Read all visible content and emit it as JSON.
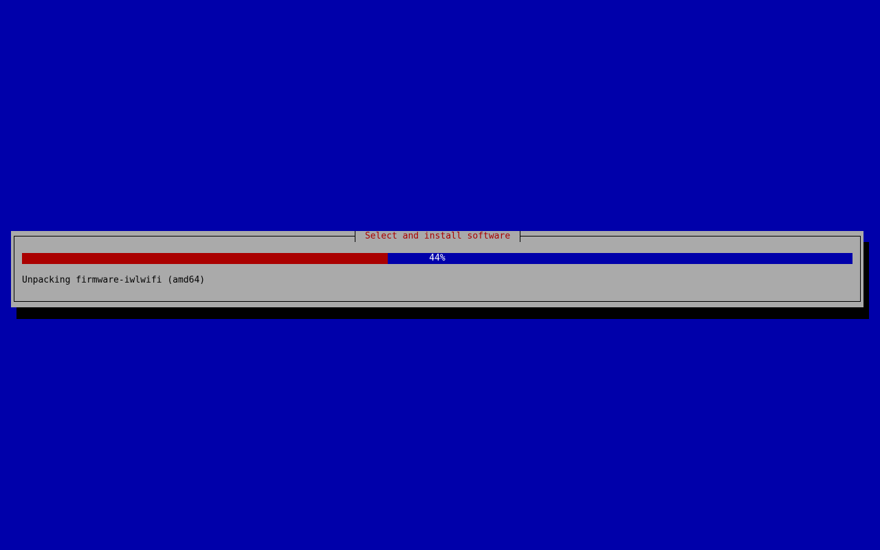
{
  "dialog": {
    "title": "Select and install software",
    "progress_percent": 44,
    "progress_label": "44%",
    "status_text": "Unpacking firmware-iwlwifi (amd64)"
  },
  "colors": {
    "background": "#0000aa",
    "dialog": "#aaaaaa",
    "title": "#aa0000",
    "progress_fill": "#aa0000",
    "progress_track": "#0000aa"
  }
}
